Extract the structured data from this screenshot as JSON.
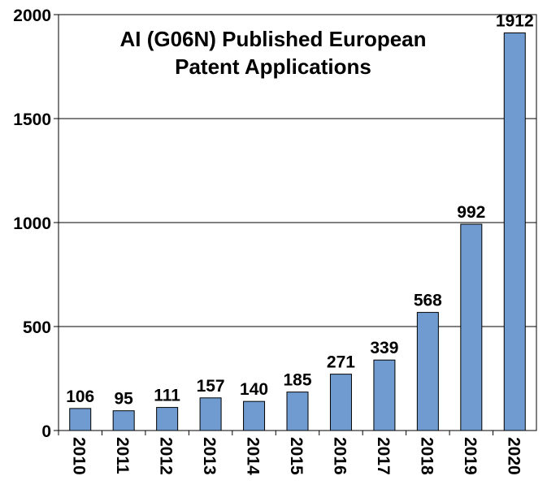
{
  "chart_data": {
    "type": "bar",
    "title_lines": [
      "AI (G06N) Published European",
      "Patent Applications"
    ],
    "xlabel": "",
    "ylabel": "",
    "categories": [
      "2010",
      "2011",
      "2012",
      "2013",
      "2014",
      "2015",
      "2016",
      "2017",
      "2018",
      "2019",
      "2020"
    ],
    "values": [
      106,
      95,
      111,
      157,
      140,
      185,
      271,
      339,
      568,
      992,
      1912
    ],
    "value_labels": [
      "106",
      "95",
      "111",
      "157",
      "140",
      "185",
      "271",
      "339",
      "568",
      "992",
      "1912"
    ],
    "ylim": [
      0,
      2000
    ],
    "yticks": [
      0,
      500,
      1000,
      1500,
      2000
    ],
    "ytick_labels": [
      "0",
      "500",
      "1000",
      "1500",
      "2000"
    ],
    "grid": true,
    "legend": "none",
    "bar_color": "#6f9bd0",
    "bar_edge_color": "#000000"
  }
}
